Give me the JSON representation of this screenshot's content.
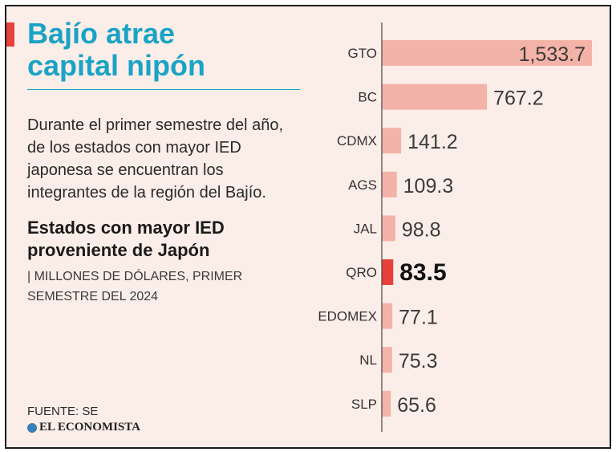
{
  "header": {
    "title_line1": "Bajío atrae",
    "title_line2": "capital nipón",
    "lead": "Durante el primer semestre del año, de los estados con mayor IED japonesa se encuentran los integrantes de la región del Bajío.",
    "subtitle_line1": "Estados con mayor IED",
    "subtitle_line2": "proveniente de Japón",
    "units_line1": "| MILLONES DE DÓLARES, PRIMER",
    "units_line2": "SEMESTRE DEL 2024"
  },
  "footer": {
    "source": "FUENTE: SE",
    "brand": "EL ECONOMISTA"
  },
  "colors": {
    "accent_red": "#e8403a",
    "title_blue": "#1aa3c6",
    "bar_pink": "#f4b3a8",
    "bar_highlight": "#e8403a",
    "background": "#fbeee8"
  },
  "chart_data": {
    "type": "bar",
    "orientation": "horizontal",
    "title": "Estados con mayor IED proveniente de Japón",
    "ylabel": "Millones de dólares",
    "categories": [
      "GTO",
      "BC",
      "CDMX",
      "AGS",
      "JAL",
      "QRO",
      "EDOMEX",
      "NL",
      "SLP"
    ],
    "values": [
      1533.7,
      767.2,
      141.2,
      109.3,
      98.8,
      83.5,
      77.1,
      75.3,
      65.6
    ],
    "value_labels": [
      "1,533.7",
      "767.2",
      "141.2",
      "109.3",
      "98.8",
      "83.5",
      "77.1",
      "75.3",
      "65.6"
    ],
    "highlight": "QRO",
    "xlim": [
      0,
      1533.7
    ]
  }
}
